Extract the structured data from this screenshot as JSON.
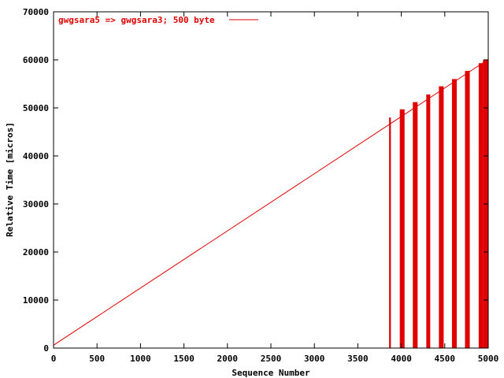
{
  "chart_data": {
    "type": "line",
    "xlabel": "Sequence Number",
    "ylabel": "Relative Time [micros]",
    "xlim": [
      0,
      5000
    ],
    "ylim": [
      0,
      70000
    ],
    "x_ticks": [
      0,
      500,
      1000,
      1500,
      2000,
      2500,
      3000,
      3500,
      4000,
      4500,
      5000
    ],
    "y_ticks": [
      0,
      10000,
      20000,
      30000,
      40000,
      50000,
      60000,
      70000
    ],
    "grid": false,
    "legend_placement": "top-left",
    "colors": {
      "series": "#e00000",
      "axis": "#000000"
    },
    "series": [
      {
        "name": "gwgsara5 => gwgsara3; 500 byte",
        "line": {
          "x": [
            0,
            5000
          ],
          "y": [
            600,
            60100
          ]
        },
        "spikes": [
          {
            "x": 3870,
            "y_top": 48000,
            "width": 20
          },
          {
            "x": 4010,
            "y_top": 49700,
            "width": 55
          },
          {
            "x": 4160,
            "y_top": 51200,
            "width": 55
          },
          {
            "x": 4310,
            "y_top": 52800,
            "width": 45
          },
          {
            "x": 4460,
            "y_top": 54500,
            "width": 55
          },
          {
            "x": 4610,
            "y_top": 56000,
            "width": 55
          },
          {
            "x": 4760,
            "y_top": 57700,
            "width": 55
          },
          {
            "x": 4915,
            "y_top": 59300,
            "width": 50
          },
          {
            "x": 4990,
            "y_top": 60000,
            "width": 60
          }
        ]
      }
    ]
  }
}
